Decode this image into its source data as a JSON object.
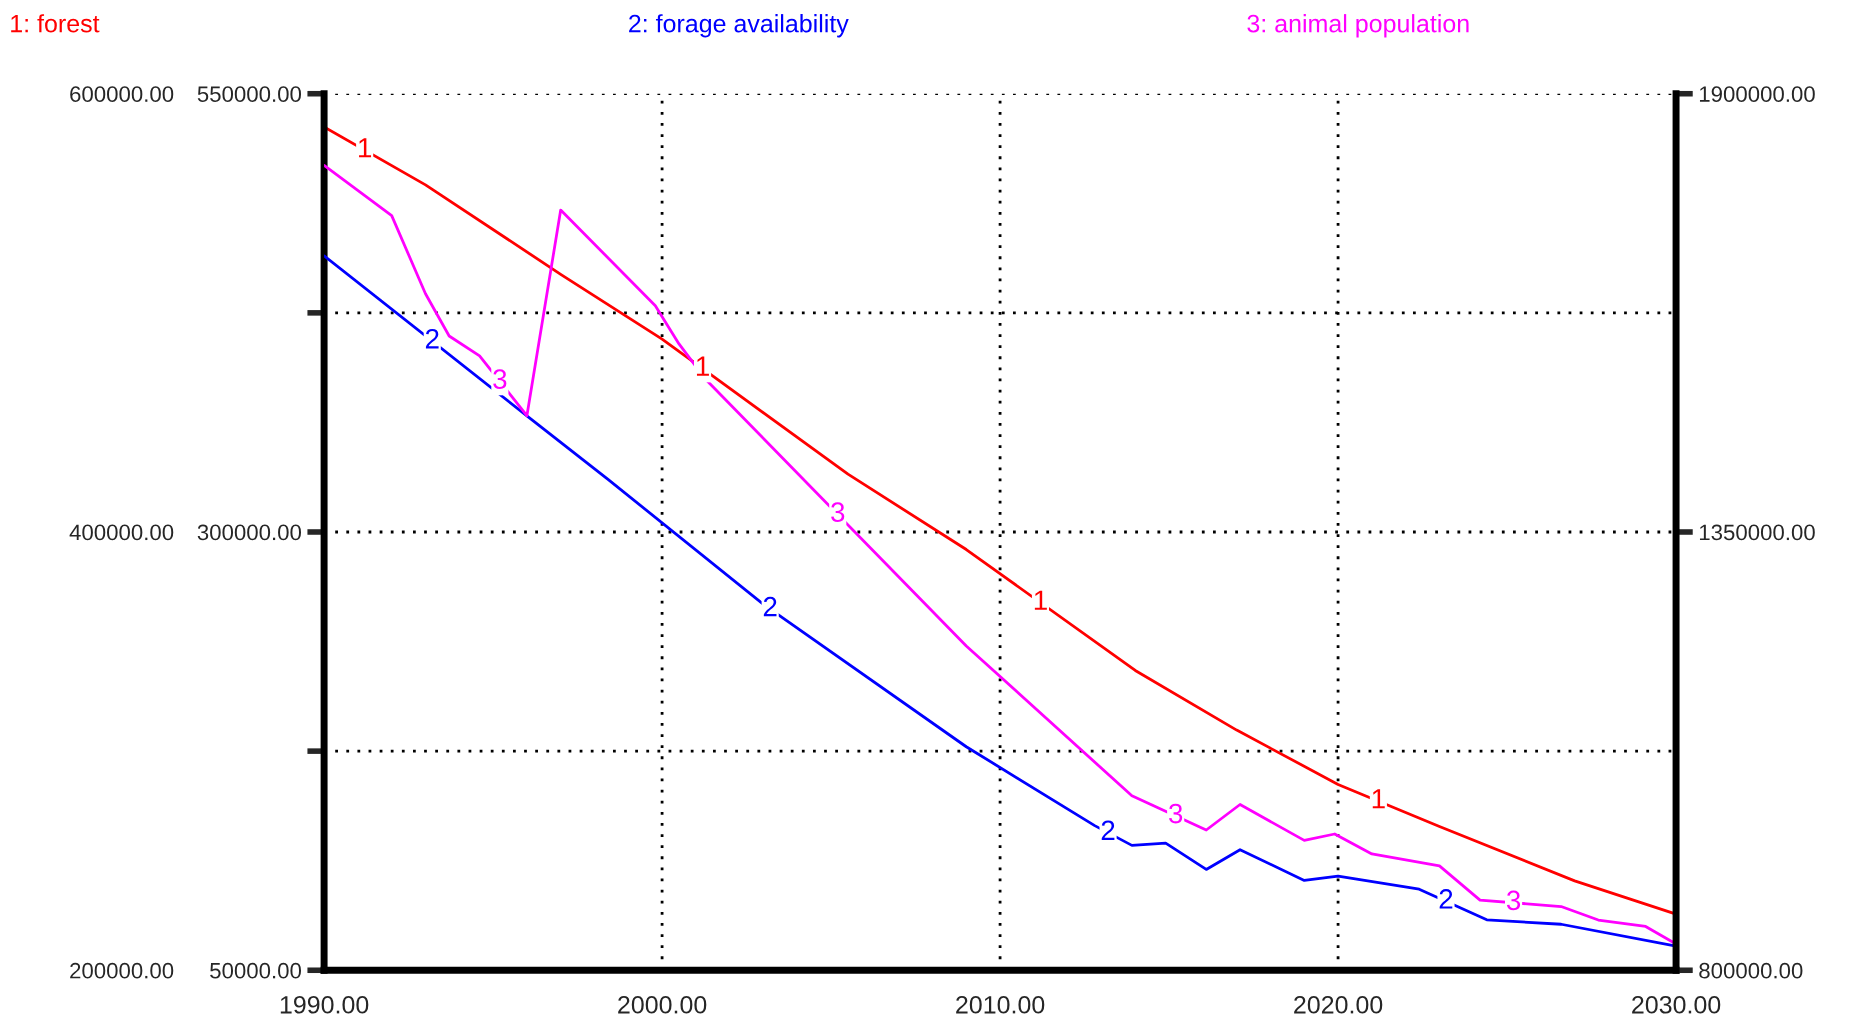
{
  "chart_data": {
    "type": "line",
    "legend": "top",
    "grid": true,
    "line_style": "solid",
    "marker": "none",
    "xlim": [
      1990,
      2030
    ],
    "xticks": [
      {
        "value": 1990,
        "label": "1990.00"
      },
      {
        "value": 2000,
        "label": "2000.00"
      },
      {
        "value": 2010,
        "label": "2010.00"
      },
      {
        "value": 2020,
        "label": "2020.00"
      },
      {
        "value": 2030,
        "label": "2030.00"
      }
    ],
    "ylim": [
      50000,
      550000
    ],
    "yticks": [
      {
        "value": 50000,
        "label": "50000.00"
      },
      {
        "value": 175000,
        "label": null
      },
      {
        "value": 300000,
        "label": "300000.00"
      },
      {
        "value": 425000,
        "label": null
      },
      {
        "value": 550000,
        "label": "550000.00"
      }
    ],
    "y2lim": [
      200000,
      600000
    ],
    "y2ticks": [
      {
        "value": 200000,
        "label": "200000.00"
      },
      {
        "value": 400000,
        "label": "400000.00"
      },
      {
        "value": 600000,
        "label": "600000.00"
      }
    ],
    "y3lim": [
      800000,
      1900000
    ],
    "y3ticks": [
      {
        "value": 800000,
        "label": "800000.00"
      },
      {
        "value": 1350000,
        "label": "1350000.00"
      },
      {
        "value": 1900000,
        "label": "1900000.00"
      }
    ],
    "series": [
      {
        "name": "1: forest",
        "color": "#ff0000",
        "axis": "y",
        "x": [
          1990,
          1993,
          1997,
          2000,
          2005.5,
          2009,
          2014,
          2017,
          2020,
          2023,
          2027,
          2030
        ],
        "values": [
          531000,
          498000,
          447000,
          410000,
          333000,
          290000,
          221000,
          187000,
          156000,
          132000,
          101000,
          82000
        ]
      },
      {
        "name": "2: forage availability",
        "color": "#0000ff",
        "axis": "y2",
        "x": [
          1990,
          1996,
          1998.4,
          2003,
          2009,
          2012.8,
          2013.9,
          2014.9,
          2016.1,
          2017.1,
          2019,
          2020,
          2022.4,
          2024.4,
          2026.6,
          2030
        ],
        "values": [
          526000,
          453000,
          424000,
          367000,
          302000,
          266000,
          257000,
          258000,
          246000,
          255000,
          241000,
          243000,
          237000,
          223000,
          221000,
          211000
        ]
      },
      {
        "name": "3: animal population",
        "color": "#ff00ff",
        "axis": "y3",
        "x": [
          1990,
          1992,
          1993,
          1993.7,
          1994.6,
          1996,
          1997,
          1999.8,
          2000.5,
          2001.3,
          2009,
          2013.9,
          2016.1,
          2017.1,
          2019,
          2019.9,
          2021,
          2023,
          2024.2,
          2026.6,
          2027.7,
          2029.1,
          2030
        ],
        "values": [
          1810000,
          1747000,
          1649000,
          1596000,
          1571000,
          1496000,
          1754000,
          1634000,
          1586000,
          1541000,
          1207000,
          1019000,
          976000,
          1008000,
          963000,
          971000,
          946000,
          931000,
          888000,
          880000,
          863000,
          855000,
          833000
        ]
      }
    ],
    "annotations": [
      "1",
      "1",
      "1",
      "1",
      "2",
      "2",
      "2",
      "2",
      "3",
      "3",
      "3",
      "3"
    ]
  }
}
